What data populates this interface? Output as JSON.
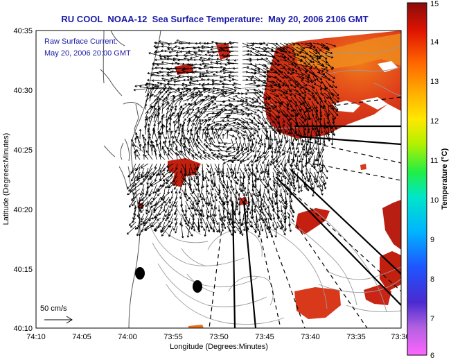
{
  "title": "RU COOL  NOAA-12  Sea Surface Temperature:  May 20, 2006 2106 GMT",
  "annotation": {
    "line1": "Raw Surface Current:",
    "line2": "May 20, 2006 20:00 GMT"
  },
  "scale_label": "50 cm/s",
  "x_axis": {
    "label": "Longitude (Degrees:Minutes)",
    "ticks": [
      "74:10",
      "74:05",
      "74:00",
      "73:55",
      "73:50",
      "73:45",
      "73:40",
      "73:35",
      "73:30"
    ]
  },
  "y_axis": {
    "label": "Latitude (Degrees:Minutes)",
    "ticks": [
      "40:35",
      "40:30",
      "40:25",
      "40:20",
      "40:15",
      "40:10"
    ]
  },
  "colorbar": {
    "label": "Temperature (°C)",
    "ticks": [
      "15",
      "14",
      "13",
      "12",
      "11",
      "10",
      "9",
      "8",
      "7",
      "6"
    ],
    "min": 6,
    "max": 15
  },
  "colors": {
    "title": "#1a1aa8",
    "land_outline": "#555555",
    "bathymetry": "#9a9a9a",
    "arrows": "#000000"
  }
}
